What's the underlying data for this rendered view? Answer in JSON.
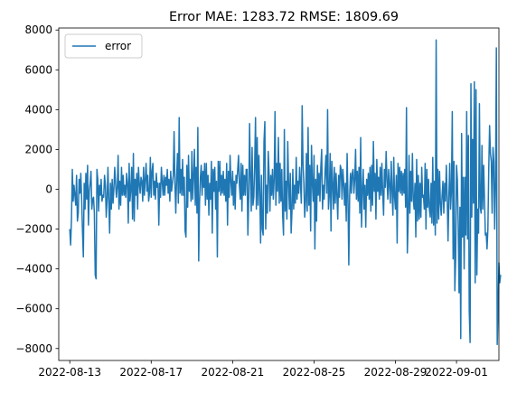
{
  "chart_data": {
    "type": "line",
    "title": "Error MAE: 1283.72 RMSE: 1809.69",
    "xlabel": "",
    "ylabel": "",
    "xlim": [
      "2022-08-12T11:00",
      "2022-09-03T02:00"
    ],
    "ylim": [
      -8600,
      8100
    ],
    "grid": false,
    "legend": {
      "position": "top-left"
    },
    "x_ticks": [
      "2022-08-13",
      "2022-08-17",
      "2022-08-21",
      "2022-08-25",
      "2022-08-29",
      "2022-09-01"
    ],
    "y_ticks": [
      -8000,
      -6000,
      -4000,
      -2000,
      0,
      2000,
      4000,
      6000,
      8000
    ],
    "x_start": "2022-08-13T00:00",
    "x_step_hours": 1,
    "series": [
      {
        "name": "error",
        "color": "#1f77b4",
        "values": [
          -2000,
          -2800,
          -1500,
          1000,
          -600,
          200,
          -300,
          -800,
          700,
          -1600,
          -1200,
          500,
          -200,
          800,
          -500,
          -2100,
          -3400,
          300,
          -1000,
          800,
          -500,
          1200,
          -1800,
          -100,
          300,
          900,
          -1000,
          -500,
          -400,
          -1200,
          -4300,
          -4500,
          1000,
          500,
          -1100,
          200,
          -300,
          500,
          -600,
          -300,
          -400,
          700,
          200,
          -1400,
          -500,
          1100,
          -600,
          -2200,
          300,
          -1000,
          500,
          -700,
          0,
          1100,
          300,
          -400,
          100,
          1700,
          -1000,
          400,
          -800,
          1100,
          -300,
          700,
          -300,
          200,
          -400,
          800,
          300,
          -1700,
          1300,
          -600,
          0,
          1100,
          -1500,
          1800,
          -1600,
          500,
          -300,
          800,
          -1000,
          1100,
          300,
          -200,
          600,
          400,
          -600,
          1100,
          -300,
          500,
          1300,
          -100,
          700,
          -600,
          -200,
          1600,
          -400,
          900,
          1300,
          -300,
          400,
          -500,
          800,
          100,
          300,
          -1800,
          300,
          -400,
          1100,
          400,
          -300,
          700,
          -300,
          600,
          200,
          1000,
          -200,
          500,
          -600,
          900,
          -100,
          300,
          700,
          2900,
          300,
          -1200,
          600,
          1800,
          -700,
          3600,
          -200,
          1000,
          -300,
          1500,
          -300,
          600,
          -2100,
          -2400,
          1200,
          -900,
          1700,
          -100,
          500,
          -600,
          1900,
          -500,
          700,
          2000,
          -800,
          1100,
          -1200,
          3100,
          -3600,
          -700,
          600,
          1200,
          -300,
          900,
          100,
          1300,
          -800,
          1300,
          -500,
          700,
          -1300,
          300,
          -500,
          1400,
          -2200,
          1000,
          -100,
          1100,
          -1000,
          400,
          -3400,
          1400,
          -100,
          1400,
          -300,
          700,
          -200,
          900,
          -300,
          500,
          -600,
          1300,
          -1800,
          900,
          -400,
          1700,
          400,
          -300,
          900,
          -800,
          400,
          -1000,
          700,
          300,
          1000,
          1700,
          200,
          -500,
          1300,
          -1100,
          1200,
          -300,
          700,
          -300,
          1000,
          1000,
          -2300,
          -500,
          3300,
          600,
          -1100,
          2100,
          -800,
          -400,
          1200,
          3600,
          -1000,
          2600,
          -800,
          1700,
          -100,
          -2700,
          700,
          -2000,
          -2300,
          2400,
          3400,
          -2000,
          200,
          -1200,
          1900,
          800,
          -1100,
          700,
          -300,
          1000,
          -500,
          500,
          3900,
          -800,
          1300,
          -100,
          2600,
          -700,
          1300,
          -600,
          1000,
          -1300,
          -2300,
          3000,
          -1100,
          400,
          -1500,
          2400,
          300,
          -1000,
          800,
          -2200,
          -1100,
          1000,
          -1000,
          200,
          -700,
          1600,
          -500,
          400,
          -200,
          1100,
          300,
          -700,
          4200,
          1300,
          300,
          -1400,
          -600,
          1800,
          -1100,
          3100,
          -800,
          1200,
          -2100,
          2200,
          300,
          -600,
          1700,
          -3000,
          500,
          -1600,
          1200,
          -300,
          800,
          -600,
          1100,
          2000,
          -1000,
          200,
          -500,
          900,
          1700,
          -200,
          4000,
          -1000,
          -300,
          1800,
          -2100,
          1400,
          300,
          -1000,
          1100,
          -700,
          800,
          -300,
          -1500,
          700,
          -400,
          1200,
          1000,
          -500,
          1000,
          300,
          -800,
          300,
          -1600,
          1800,
          -400,
          -3800,
          -300,
          800,
          -200,
          800,
          1000,
          -200,
          500,
          2000,
          -500,
          900,
          -600,
          1100,
          -1200,
          2600,
          -1900,
          -100,
          1000,
          -1000,
          200,
          -1900,
          500,
          -300,
          800,
          -500,
          1100,
          -1100,
          1200,
          -800,
          2400,
          -100,
          800,
          -1500,
          1500,
          -100,
          600,
          -500,
          1100,
          -300,
          1300,
          -200,
          -1300,
          1000,
          100,
          1900,
          500,
          -500,
          1000,
          200,
          -700,
          1400,
          -100,
          -1300,
          1600,
          -400,
          -1000,
          700,
          -2700,
          1300,
          -100,
          1100,
          -200,
          900,
          -300,
          800,
          -200,
          1000,
          -900,
          4100,
          -3200,
          -1600,
          1700,
          -1200,
          900,
          -600,
          1800,
          -500,
          -1000,
          300,
          -2400,
          1500,
          -1600,
          700,
          -1500,
          300,
          -1400,
          1100,
          -400,
          -300,
          -1000,
          1300,
          -2000,
          1000,
          -900,
          500,
          -1000,
          -1400,
          300,
          -1700,
          1600,
          -1800,
          400,
          -2300,
          7500,
          -1700,
          1000,
          -1500,
          900,
          -700,
          -1300,
          -300,
          400,
          -1200,
          300,
          -600,
          1200,
          -400,
          -2600,
          -400,
          1300,
          -1000,
          -100,
          3900,
          -3500,
          1400,
          -5100,
          -3500,
          1200,
          500,
          -1800,
          -5200,
          -900,
          -7500,
          2800,
          -2400,
          600,
          -4000,
          600,
          -2300,
          3900,
          -2500,
          2700,
          -6100,
          -7700,
          5300,
          -1400,
          2500,
          -700,
          5400,
          -4700,
          5000,
          -4300,
          -1000,
          -2200,
          4300,
          -900,
          -1200,
          2200,
          -1000,
          1200,
          -500,
          -2300,
          -2200,
          -3000,
          -2000,
          1000,
          3200,
          1800,
          1400,
          -1200,
          2100,
          1400,
          -2000,
          400,
          7100,
          -7800,
          -6100,
          -3700,
          -4700,
          -4300
        ]
      }
    ]
  }
}
